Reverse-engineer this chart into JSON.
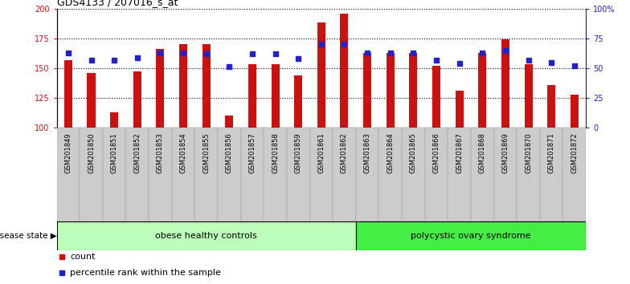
{
  "title": "GDS4133 / 207016_s_at",
  "samples": [
    "GSM201849",
    "GSM201850",
    "GSM201851",
    "GSM201852",
    "GSM201853",
    "GSM201854",
    "GSM201855",
    "GSM201856",
    "GSM201857",
    "GSM201858",
    "GSM201859",
    "GSM201861",
    "GSM201862",
    "GSM201863",
    "GSM201864",
    "GSM201865",
    "GSM201866",
    "GSM201867",
    "GSM201868",
    "GSM201869",
    "GSM201870",
    "GSM201871",
    "GSM201872"
  ],
  "bar_values": [
    157,
    146,
    113,
    147,
    166,
    170,
    170,
    110,
    153,
    153,
    144,
    188,
    196,
    163,
    163,
    163,
    152,
    131,
    163,
    174,
    153,
    136,
    128
  ],
  "blue_values": [
    163,
    157,
    157,
    159,
    163,
    163,
    162,
    151,
    162,
    162,
    158,
    170,
    170,
    163,
    163,
    163,
    157,
    154,
    163,
    165,
    157,
    155,
    152
  ],
  "group1_label": "obese healthy controls",
  "group2_label": "polycystic ovary syndrome",
  "group1_count": 13,
  "ylim_left": [
    100,
    200
  ],
  "yticks_left": [
    100,
    125,
    150,
    175,
    200
  ],
  "ylim_right": [
    0,
    100
  ],
  "yticks_right": [
    0,
    25,
    50,
    75,
    100
  ],
  "right_ylabels": [
    "0",
    "25",
    "50",
    "75",
    "100%"
  ],
  "bar_color": "#cc1111",
  "blue_color": "#2222cc",
  "group1_color": "#bbffbb",
  "group2_color": "#44ee44",
  "group_border_color": "#000000",
  "left_axis_color": "#cc1111",
  "right_axis_color": "#2222cc",
  "grid_style": ":",
  "grid_color": "#000000",
  "grid_linewidth": 0.8,
  "bar_width": 0.35,
  "blue_marker_size": 4,
  "legend_count_label": "count",
  "legend_percentile_label": "percentile rank within the sample",
  "title_fontsize": 9,
  "tick_fontsize": 7,
  "label_fontsize": 8,
  "disease_state_label": "disease state"
}
